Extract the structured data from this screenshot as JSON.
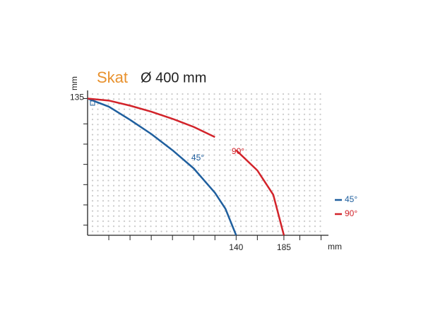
{
  "chart_data": {
    "type": "line",
    "title": "Skat",
    "title_color": "#e8912d",
    "subtitle": "Ø 400 mm",
    "xlabel": "mm",
    "ylabel": "mm",
    "x": [
      0,
      20,
      40,
      60,
      80,
      100,
      120,
      130,
      140,
      160,
      175,
      185
    ],
    "series": [
      {
        "name": "45°",
        "color": "#1f5f9e",
        "values": [
          135,
          127,
          114,
          100,
          84,
          66,
          42,
          26,
          0,
          null,
          null,
          null
        ]
      },
      {
        "name": "90°",
        "color": "#d2232a",
        "values": [
          135,
          133,
          128,
          122,
          115,
          107,
          97,
          null,
          84,
          64,
          40,
          0
        ]
      }
    ],
    "xlim": [
      0,
      227
    ],
    "ylim": [
      0,
      143
    ],
    "xticks": [
      140,
      185
    ],
    "yticks": [
      135
    ],
    "x_minor_ticks": [
      20,
      40,
      60,
      80,
      100,
      120,
      160,
      200,
      220
    ],
    "y_minor_ticks": [
      10,
      30,
      50,
      70,
      90,
      110
    ],
    "grid": "dots",
    "legend": "right"
  }
}
